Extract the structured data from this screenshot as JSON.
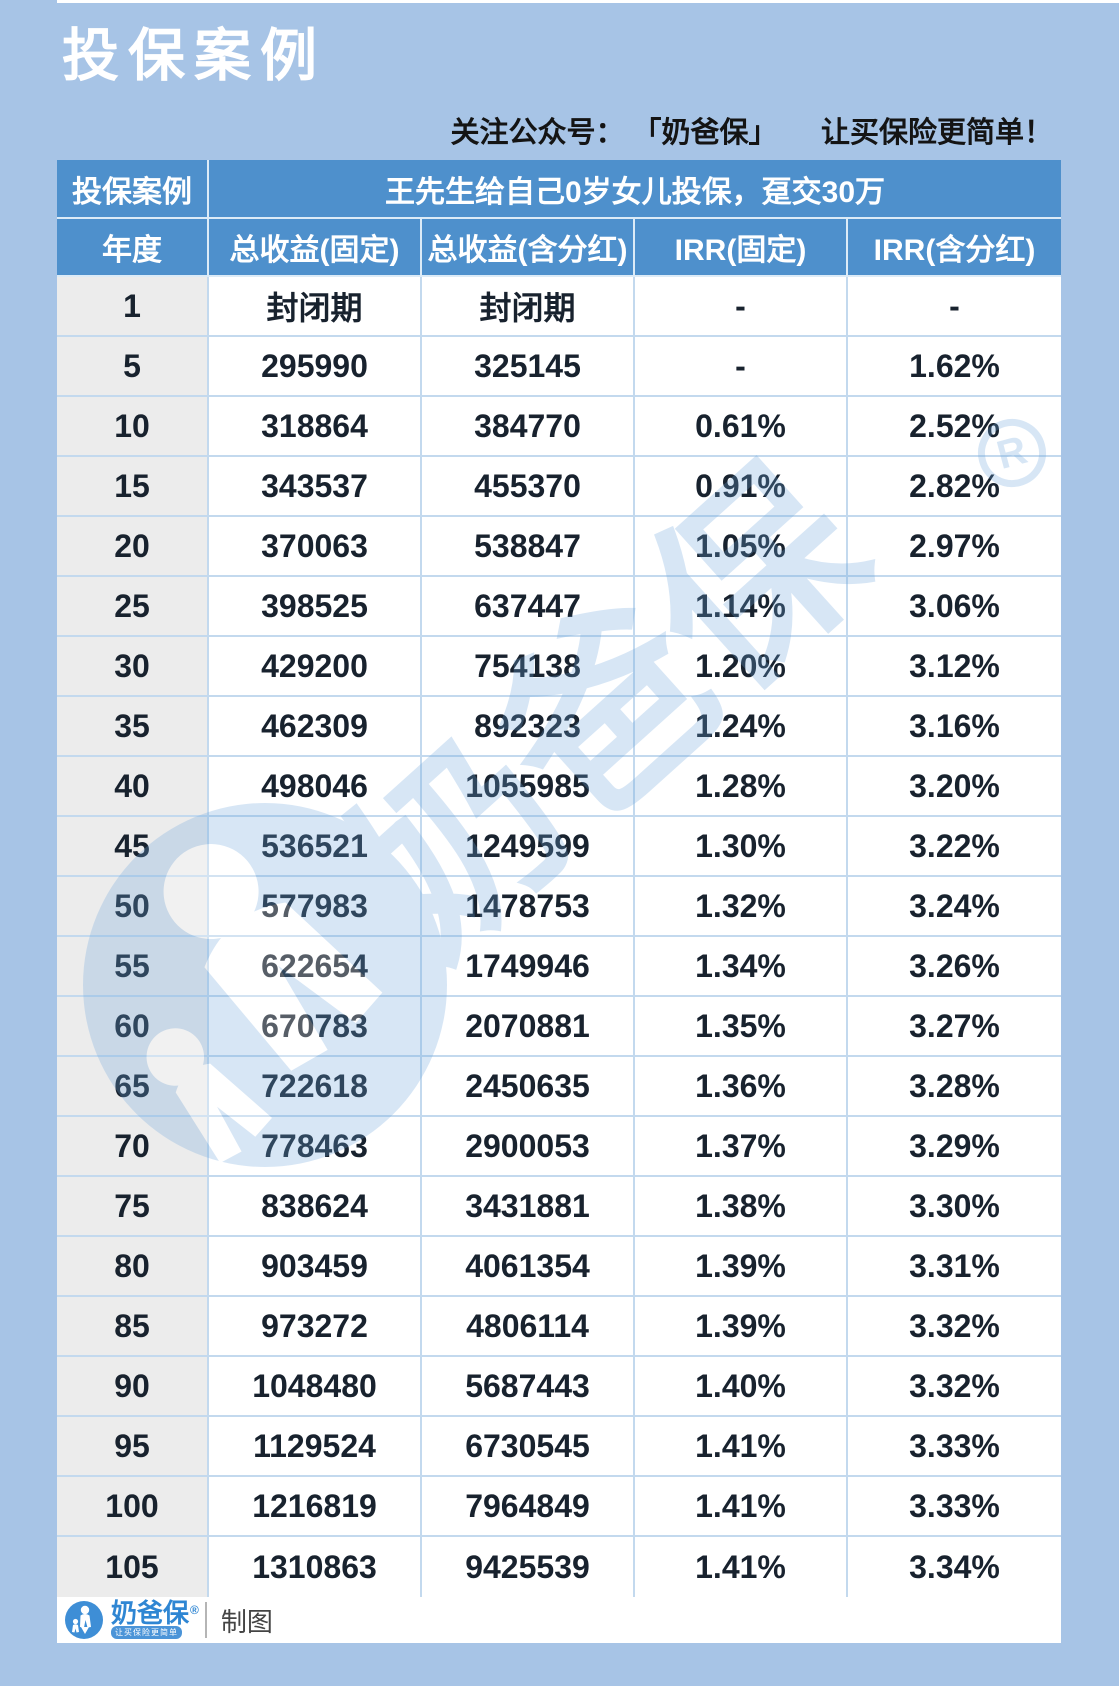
{
  "page": {
    "title": "投保案例",
    "subtitle": "关注公众号： 「奶爸保」　　让买保险更简单！",
    "bg_color": "#a7c4e6",
    "header_blue": "#4e90cc"
  },
  "table": {
    "case_label": "投保案例",
    "case_desc": "王先生给自己0岁女儿投保，趸交30万",
    "columns": [
      "年度",
      "总收益(固定)",
      "总收益(含分红)",
      "IRR(固定)",
      "IRR(含分红)"
    ],
    "rows": [
      [
        "1",
        "封闭期",
        "封闭期",
        "-",
        "-"
      ],
      [
        "5",
        "295990",
        "325145",
        "-",
        "1.62%"
      ],
      [
        "10",
        "318864",
        "384770",
        "0.61%",
        "2.52%"
      ],
      [
        "15",
        "343537",
        "455370",
        "0.91%",
        "2.82%"
      ],
      [
        "20",
        "370063",
        "538847",
        "1.05%",
        "2.97%"
      ],
      [
        "25",
        "398525",
        "637447",
        "1.14%",
        "3.06%"
      ],
      [
        "30",
        "429200",
        "754138",
        "1.20%",
        "3.12%"
      ],
      [
        "35",
        "462309",
        "892323",
        "1.24%",
        "3.16%"
      ],
      [
        "40",
        "498046",
        "1055985",
        "1.28%",
        "3.20%"
      ],
      [
        "45",
        "536521",
        "1249599",
        "1.30%",
        "3.22%"
      ],
      [
        "50",
        "577983",
        "1478753",
        "1.32%",
        "3.24%"
      ],
      [
        "55",
        "622654",
        "1749946",
        "1.34%",
        "3.26%"
      ],
      [
        "60",
        "670783",
        "2070881",
        "1.35%",
        "3.27%"
      ],
      [
        "65",
        "722618",
        "2450635",
        "1.36%",
        "3.28%"
      ],
      [
        "70",
        "778463",
        "2900053",
        "1.37%",
        "3.29%"
      ],
      [
        "75",
        "838624",
        "3431881",
        "1.38%",
        "3.30%"
      ],
      [
        "80",
        "903459",
        "4061354",
        "1.39%",
        "3.31%"
      ],
      [
        "85",
        "973272",
        "4806114",
        "1.39%",
        "3.32%"
      ],
      [
        "90",
        "1048480",
        "5687443",
        "1.40%",
        "3.32%"
      ],
      [
        "95",
        "1129524",
        "6730545",
        "1.41%",
        "3.33%"
      ],
      [
        "100",
        "1216819",
        "7964849",
        "1.41%",
        "3.33%"
      ],
      [
        "105",
        "1310863",
        "9425539",
        "1.41%",
        "3.34%"
      ]
    ]
  },
  "watermark": {
    "text": "奶爸保",
    "registered": "R"
  },
  "footer": {
    "brand": "奶爸保",
    "registered": "®",
    "slogan": "让买保险更简单",
    "credit": "制图"
  }
}
